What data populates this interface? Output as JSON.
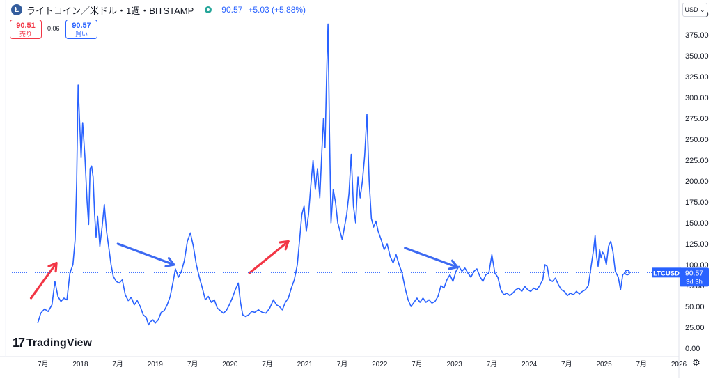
{
  "header": {
    "logo_letter": "Ł",
    "title": "ライトコイン／米ドル・1週・BITSTAMP",
    "last_price": "90.57",
    "change": "+5.03 (+5.88%)"
  },
  "trade": {
    "sell_price": "90.51",
    "sell_label": "売り",
    "spread": "0.06",
    "buy_price": "90.57",
    "buy_label": "買い"
  },
  "currency_label": "USD",
  "price_tag": {
    "symbol": "LTCUSD",
    "value": "90.57",
    "countdown": "3d 3h"
  },
  "brand": {
    "mark": "17",
    "name": "TradingView"
  },
  "icons": {
    "settings": "gear-icon",
    "currency_dropdown": "chevron-down-icon"
  },
  "colors": {
    "line": "#2962ff",
    "up_arrow": "#f23645",
    "down_arrow": "#3d6af2",
    "price_line": "#2962ff"
  },
  "chart_data": {
    "type": "line",
    "title": "",
    "xlabel": "",
    "ylabel": "",
    "ylim": [
      -10,
      410
    ],
    "xlim": [
      2017.0,
      2026.0
    ],
    "y_ticks": [
      "0.00",
      "25.00",
      "50.00",
      "75.00",
      "100.00",
      "125.00",
      "150.00",
      "175.00",
      "200.00",
      "225.00",
      "250.00",
      "275.00",
      "300.00",
      "325.00",
      "350.00",
      "375.00",
      "400.00"
    ],
    "y_tick_values": [
      0,
      25,
      50,
      75,
      100,
      125,
      150,
      175,
      200,
      225,
      250,
      275,
      300,
      325,
      350,
      375,
      400
    ],
    "x_ticks": [
      {
        "label": "7月",
        "t": 2017.5
      },
      {
        "label": "2018",
        "t": 2018.0
      },
      {
        "label": "7月",
        "t": 2018.5
      },
      {
        "label": "2019",
        "t": 2019.0
      },
      {
        "label": "7月",
        "t": 2019.5
      },
      {
        "label": "2020",
        "t": 2020.0
      },
      {
        "label": "7月",
        "t": 2020.5
      },
      {
        "label": "2021",
        "t": 2021.0
      },
      {
        "label": "7月",
        "t": 2021.5
      },
      {
        "label": "2022",
        "t": 2022.0
      },
      {
        "label": "7月",
        "t": 2022.5
      },
      {
        "label": "2023",
        "t": 2023.0
      },
      {
        "label": "7月",
        "t": 2023.5
      },
      {
        "label": "2024",
        "t": 2024.0
      },
      {
        "label": "7月",
        "t": 2024.5
      },
      {
        "label": "2025",
        "t": 2025.0
      },
      {
        "label": "7月",
        "t": 2025.5
      },
      {
        "label": "2026",
        "t": 2026.0
      }
    ],
    "current_price": 90.57,
    "series": [
      {
        "points": [
          [
            2017.43,
            30
          ],
          [
            2017.47,
            42
          ],
          [
            2017.52,
            47
          ],
          [
            2017.57,
            44
          ],
          [
            2017.62,
            52
          ],
          [
            2017.66,
            80
          ],
          [
            2017.7,
            62
          ],
          [
            2017.74,
            56
          ],
          [
            2017.78,
            60
          ],
          [
            2017.82,
            58
          ],
          [
            2017.86,
            90
          ],
          [
            2017.9,
            100
          ],
          [
            2017.93,
            130
          ],
          [
            2017.95,
            200
          ],
          [
            2017.97,
            315
          ],
          [
            2017.99,
            270
          ],
          [
            2018.01,
            228
          ],
          [
            2018.03,
            270
          ],
          [
            2018.06,
            230
          ],
          [
            2018.09,
            175
          ],
          [
            2018.11,
            148
          ],
          [
            2018.13,
            215
          ],
          [
            2018.15,
            218
          ],
          [
            2018.17,
            205
          ],
          [
            2018.19,
            160
          ],
          [
            2018.21,
            133
          ],
          [
            2018.23,
            158
          ],
          [
            2018.26,
            122
          ],
          [
            2018.29,
            145
          ],
          [
            2018.32,
            172
          ],
          [
            2018.35,
            140
          ],
          [
            2018.38,
            120
          ],
          [
            2018.41,
            100
          ],
          [
            2018.44,
            86
          ],
          [
            2018.48,
            80
          ],
          [
            2018.52,
            78
          ],
          [
            2018.56,
            82
          ],
          [
            2018.6,
            64
          ],
          [
            2018.64,
            57
          ],
          [
            2018.68,
            61
          ],
          [
            2018.72,
            52
          ],
          [
            2018.76,
            57
          ],
          [
            2018.8,
            50
          ],
          [
            2018.84,
            40
          ],
          [
            2018.88,
            37
          ],
          [
            2018.91,
            28
          ],
          [
            2018.94,
            32
          ],
          [
            2018.97,
            34
          ],
          [
            2019.0,
            30
          ],
          [
            2019.04,
            34
          ],
          [
            2019.08,
            43
          ],
          [
            2019.12,
            45
          ],
          [
            2019.16,
            52
          ],
          [
            2019.2,
            62
          ],
          [
            2019.24,
            80
          ],
          [
            2019.27,
            95
          ],
          [
            2019.31,
            85
          ],
          [
            2019.35,
            92
          ],
          [
            2019.39,
            105
          ],
          [
            2019.43,
            128
          ],
          [
            2019.47,
            138
          ],
          [
            2019.51,
            122
          ],
          [
            2019.55,
            100
          ],
          [
            2019.59,
            85
          ],
          [
            2019.63,
            72
          ],
          [
            2019.67,
            58
          ],
          [
            2019.71,
            62
          ],
          [
            2019.75,
            55
          ],
          [
            2019.79,
            58
          ],
          [
            2019.83,
            48
          ],
          [
            2019.87,
            45
          ],
          [
            2019.91,
            42
          ],
          [
            2019.95,
            45
          ],
          [
            2019.99,
            52
          ],
          [
            2020.03,
            60
          ],
          [
            2020.07,
            70
          ],
          [
            2020.11,
            78
          ],
          [
            2020.14,
            55
          ],
          [
            2020.17,
            40
          ],
          [
            2020.21,
            38
          ],
          [
            2020.25,
            40
          ],
          [
            2020.29,
            44
          ],
          [
            2020.33,
            43
          ],
          [
            2020.38,
            46
          ],
          [
            2020.43,
            43
          ],
          [
            2020.48,
            42
          ],
          [
            2020.53,
            48
          ],
          [
            2020.58,
            58
          ],
          [
            2020.62,
            52
          ],
          [
            2020.66,
            50
          ],
          [
            2020.7,
            46
          ],
          [
            2020.74,
            55
          ],
          [
            2020.78,
            60
          ],
          [
            2020.82,
            72
          ],
          [
            2020.86,
            82
          ],
          [
            2020.9,
            100
          ],
          [
            2020.93,
            130
          ],
          [
            2020.96,
            160
          ],
          [
            2020.99,
            170
          ],
          [
            2021.02,
            140
          ],
          [
            2021.05,
            160
          ],
          [
            2021.08,
            195
          ],
          [
            2021.11,
            225
          ],
          [
            2021.14,
            190
          ],
          [
            2021.17,
            215
          ],
          [
            2021.2,
            180
          ],
          [
            2021.23,
            240
          ],
          [
            2021.25,
            275
          ],
          [
            2021.27,
            240
          ],
          [
            2021.29,
            320
          ],
          [
            2021.31,
            388
          ],
          [
            2021.33,
            260
          ],
          [
            2021.35,
            150
          ],
          [
            2021.38,
            190
          ],
          [
            2021.41,
            175
          ],
          [
            2021.44,
            150
          ],
          [
            2021.47,
            140
          ],
          [
            2021.5,
            130
          ],
          [
            2021.53,
            145
          ],
          [
            2021.56,
            160
          ],
          [
            2021.59,
            185
          ],
          [
            2021.62,
            232
          ],
          [
            2021.65,
            170
          ],
          [
            2021.68,
            150
          ],
          [
            2021.71,
            205
          ],
          [
            2021.74,
            180
          ],
          [
            2021.77,
            200
          ],
          [
            2021.8,
            230
          ],
          [
            2021.83,
            280
          ],
          [
            2021.86,
            200
          ],
          [
            2021.89,
            155
          ],
          [
            2021.92,
            145
          ],
          [
            2021.95,
            152
          ],
          [
            2021.98,
            140
          ],
          [
            2022.02,
            130
          ],
          [
            2022.06,
            118
          ],
          [
            2022.1,
            125
          ],
          [
            2022.14,
            110
          ],
          [
            2022.18,
            102
          ],
          [
            2022.22,
            112
          ],
          [
            2022.26,
            100
          ],
          [
            2022.3,
            90
          ],
          [
            2022.34,
            72
          ],
          [
            2022.38,
            58
          ],
          [
            2022.42,
            50
          ],
          [
            2022.46,
            55
          ],
          [
            2022.5,
            60
          ],
          [
            2022.54,
            55
          ],
          [
            2022.58,
            60
          ],
          [
            2022.62,
            55
          ],
          [
            2022.66,
            58
          ],
          [
            2022.7,
            54
          ],
          [
            2022.74,
            56
          ],
          [
            2022.78,
            62
          ],
          [
            2022.82,
            75
          ],
          [
            2022.86,
            72
          ],
          [
            2022.9,
            82
          ],
          [
            2022.94,
            88
          ],
          [
            2022.98,
            80
          ],
          [
            2023.02,
            92
          ],
          [
            2023.06,
            98
          ],
          [
            2023.1,
            92
          ],
          [
            2023.14,
            96
          ],
          [
            2023.18,
            90
          ],
          [
            2023.22,
            85
          ],
          [
            2023.26,
            92
          ],
          [
            2023.3,
            95
          ],
          [
            2023.34,
            86
          ],
          [
            2023.38,
            80
          ],
          [
            2023.42,
            88
          ],
          [
            2023.46,
            90
          ],
          [
            2023.5,
            112
          ],
          [
            2023.54,
            90
          ],
          [
            2023.58,
            85
          ],
          [
            2023.62,
            70
          ],
          [
            2023.66,
            64
          ],
          [
            2023.7,
            66
          ],
          [
            2023.74,
            63
          ],
          [
            2023.78,
            66
          ],
          [
            2023.82,
            70
          ],
          [
            2023.86,
            72
          ],
          [
            2023.9,
            68
          ],
          [
            2023.94,
            74
          ],
          [
            2023.98,
            70
          ],
          [
            2024.02,
            68
          ],
          [
            2024.06,
            72
          ],
          [
            2024.1,
            70
          ],
          [
            2024.14,
            75
          ],
          [
            2024.18,
            82
          ],
          [
            2024.21,
            100
          ],
          [
            2024.24,
            98
          ],
          [
            2024.27,
            82
          ],
          [
            2024.31,
            80
          ],
          [
            2024.35,
            84
          ],
          [
            2024.39,
            76
          ],
          [
            2024.43,
            70
          ],
          [
            2024.47,
            68
          ],
          [
            2024.51,
            63
          ],
          [
            2024.55,
            66
          ],
          [
            2024.59,
            64
          ],
          [
            2024.63,
            68
          ],
          [
            2024.67,
            65
          ],
          [
            2024.71,
            68
          ],
          [
            2024.75,
            70
          ],
          [
            2024.79,
            75
          ],
          [
            2024.83,
            100
          ],
          [
            2024.86,
            118
          ],
          [
            2024.88,
            135
          ],
          [
            2024.9,
            110
          ],
          [
            2024.92,
            98
          ],
          [
            2024.94,
            118
          ],
          [
            2024.96,
            108
          ],
          [
            2024.98,
            115
          ],
          [
            2025.0,
            112
          ],
          [
            2025.03,
            100
          ],
          [
            2025.06,
            122
          ],
          [
            2025.09,
            128
          ],
          [
            2025.12,
            115
          ],
          [
            2025.15,
            92
          ],
          [
            2025.19,
            85
          ],
          [
            2025.22,
            70
          ],
          [
            2025.25,
            88
          ],
          [
            2025.28,
            90
          ],
          [
            2025.31,
            90.57
          ]
        ]
      }
    ],
    "annotations": [
      {
        "kind": "arrow",
        "dir": "up",
        "from": [
          2017.34,
          60
        ],
        "to": [
          2017.68,
          102
        ]
      },
      {
        "kind": "arrow",
        "dir": "down",
        "from": [
          2018.5,
          125
        ],
        "to": [
          2019.25,
          100
        ]
      },
      {
        "kind": "arrow",
        "dir": "up",
        "from": [
          2020.26,
          90
        ],
        "to": [
          2020.78,
          128
        ]
      },
      {
        "kind": "arrow",
        "dir": "down",
        "from": [
          2022.34,
          120
        ],
        "to": [
          2023.04,
          97
        ]
      }
    ]
  }
}
